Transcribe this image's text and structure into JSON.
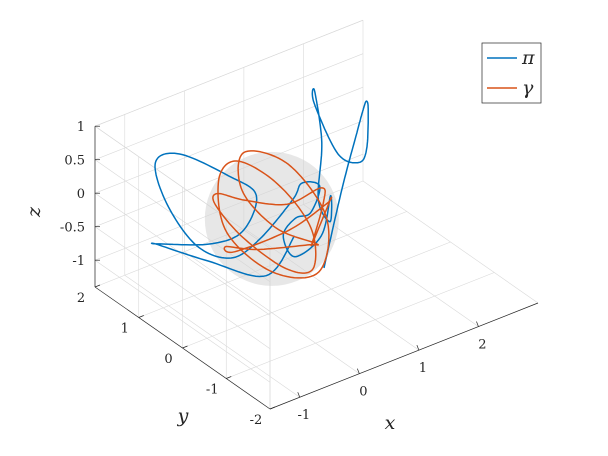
{
  "chart_data": {
    "type": "line3d",
    "title": "",
    "xlabel": "x",
    "ylabel": "y",
    "zlabel": "z",
    "xlim": [
      -1.5,
      3
    ],
    "ylim": [
      -2,
      2
    ],
    "zlim": [
      -1.4,
      1
    ],
    "xticks": [
      -1,
      0,
      1,
      2
    ],
    "xtick_labels": [
      "-1",
      "0",
      "1",
      "2"
    ],
    "yticks": [
      -2,
      -1,
      0,
      1,
      2
    ],
    "ytick_labels": [
      "-2",
      "-1",
      "0",
      "1",
      "2"
    ],
    "zticks": [
      -1,
      -0.5,
      0,
      0.5,
      1
    ],
    "ztick_labels": [
      "-1",
      "-0.5",
      "0",
      "0.5",
      "1"
    ],
    "grid": true,
    "legend_position": "top-right",
    "sphere": {
      "center": [
        0,
        0,
        0
      ],
      "radius": 1,
      "color": "#d3d3d3"
    },
    "series": [
      {
        "name": "π",
        "color": "#0072bd",
        "points": [
          [
            -0.3,
            -1.6,
            0.1
          ],
          [
            0.3,
            -1.2,
            0.9
          ],
          [
            1.0,
            -0.6,
            1.25
          ],
          [
            1.6,
            0.1,
            1.0
          ],
          [
            2.1,
            0.7,
            0.7
          ],
          [
            2.5,
            1.2,
            0.2
          ],
          [
            2.4,
            1.1,
            -0.3
          ],
          [
            1.9,
            0.6,
            -0.1
          ],
          [
            1.4,
            0.4,
            0.3
          ],
          [
            1.3,
            0.8,
            0.9
          ],
          [
            1.6,
            1.2,
            0.8
          ],
          [
            1.5,
            0.9,
            0.2
          ],
          [
            1.0,
            0.3,
            -0.2
          ],
          [
            1.2,
            0.3,
            -0.6
          ],
          [
            1.5,
            0.7,
            -0.5
          ],
          [
            1.2,
            0.5,
            -0.9
          ],
          [
            0.9,
            0.7,
            -1.2
          ],
          [
            1.0,
            1.1,
            -1.1
          ],
          [
            1.5,
            1.5,
            -1.2
          ],
          [
            1.9,
            1.7,
            -1.35
          ],
          [
            2.2,
            1.9,
            -1.15
          ],
          [
            1.9,
            1.9,
            -1.0
          ],
          [
            1.6,
            1.7,
            -1.05
          ],
          [
            0.9,
            1.5,
            -1.3
          ],
          [
            0.2,
            1.2,
            -1.2
          ],
          [
            -0.6,
            0.9,
            -0.6
          ],
          [
            -1.1,
            0.9,
            0.2
          ],
          [
            -1.0,
            1.3,
            0.6
          ],
          [
            -0.3,
            1.7,
            0.3
          ],
          [
            0.3,
            1.4,
            -0.1
          ],
          [
            0.4,
            0.9,
            -0.2
          ],
          [
            -0.2,
            0.4,
            -0.3
          ],
          [
            -0.9,
            0.2,
            -0.15
          ],
          [
            -1.4,
            0.7,
            -0.2
          ],
          [
            -1.1,
            1.1,
            -0.5
          ],
          [
            -0.4,
            0.9,
            -0.9
          ],
          [
            0.2,
            0.4,
            -1.1
          ],
          [
            0.6,
            0.3,
            -0.6
          ]
        ]
      },
      {
        "name": "γ",
        "color": "#d95319",
        "points": [
          [
            0.0,
            -0.9,
            0.0
          ],
          [
            0.5,
            -0.5,
            0.3
          ],
          [
            0.9,
            0.1,
            0.1
          ],
          [
            0.7,
            0.6,
            -0.3
          ],
          [
            0.2,
            0.9,
            -0.2
          ],
          [
            -0.4,
            0.7,
            0.2
          ],
          [
            -0.8,
            0.2,
            0.4
          ],
          [
            -0.7,
            -0.3,
            0.1
          ],
          [
            -0.2,
            -0.6,
            -0.4
          ],
          [
            0.4,
            -0.4,
            -0.7
          ],
          [
            0.8,
            0.2,
            -0.5
          ],
          [
            0.6,
            0.7,
            0.0
          ],
          [
            0.0,
            0.8,
            0.5
          ],
          [
            -0.6,
            0.4,
            0.6
          ],
          [
            -0.9,
            -0.2,
            0.2
          ],
          [
            -0.5,
            -0.7,
            -0.3
          ],
          [
            0.2,
            -0.8,
            -0.5
          ],
          [
            0.7,
            -0.3,
            -0.1
          ],
          [
            0.5,
            0.3,
            0.5
          ],
          [
            -0.1,
            0.5,
            0.8
          ],
          [
            -0.5,
            0.0,
            0.6
          ],
          [
            -0.3,
            -0.5,
            0.2
          ],
          [
            0.3,
            -0.6,
            -0.2
          ],
          [
            0.6,
            0.0,
            -0.6
          ],
          [
            0.2,
            0.6,
            -0.8
          ],
          [
            -0.4,
            0.5,
            -0.5
          ],
          [
            -0.7,
            -0.1,
            -0.2
          ],
          [
            -0.3,
            -0.8,
            0.3
          ],
          [
            0.4,
            -0.7,
            0.4
          ],
          [
            0.9,
            -0.1,
            0.0
          ],
          [
            0.0,
            -0.9,
            0.0
          ]
        ]
      }
    ]
  }
}
